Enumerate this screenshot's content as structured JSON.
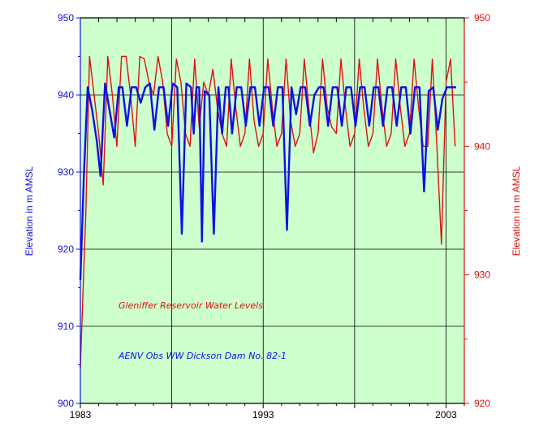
{
  "chart_data": {
    "type": "line",
    "x_ticks": [
      "1983",
      "1993",
      "2003"
    ],
    "xlim": [
      1983,
      2004
    ],
    "left_axis": {
      "label": "Elevation in m AMSL",
      "ylim": [
        900,
        950
      ],
      "ticks": [
        "900",
        "910",
        "920",
        "930",
        "940",
        "950"
      ],
      "color": "#1010e0"
    },
    "right_axis": {
      "label": "Elevation in m AMSL",
      "ylim": [
        920,
        950
      ],
      "ticks": [
        "920",
        "930",
        "940",
        "950"
      ],
      "color": "#e01010"
    },
    "grid": true,
    "background": "#ccffcc",
    "annotations": [
      {
        "text": "Gleniffer Reservoir Water Levels",
        "color": "#e01010"
      },
      {
        "text": "AENV Obs WW Dickson Dam No. 82-1",
        "color": "#1010e0"
      }
    ],
    "series": [
      {
        "axis": "right",
        "color": "#e01010",
        "x": [
          1983.0,
          1983.3,
          1983.5,
          1983.75,
          1984.0,
          1984.25,
          1984.5,
          1984.75,
          1985.0,
          1985.25,
          1985.5,
          1985.75,
          1986.0,
          1986.25,
          1986.5,
          1986.75,
          1987.0,
          1987.25,
          1987.5,
          1987.75,
          1988.0,
          1988.25,
          1988.5,
          1988.75,
          1989.0,
          1989.25,
          1989.5,
          1989.75,
          1990.0,
          1990.25,
          1990.5,
          1990.75,
          1991.0,
          1991.25,
          1991.5,
          1991.75,
          1992.0,
          1992.25,
          1992.5,
          1992.75,
          1993.0,
          1993.25,
          1993.5,
          1993.75,
          1994.0,
          1994.25,
          1994.5,
          1994.75,
          1995.0,
          1995.25,
          1995.5,
          1995.75,
          1996.0,
          1996.25,
          1996.5,
          1996.75,
          1997.0,
          1997.25,
          1997.5,
          1997.75,
          1998.0,
          1998.25,
          1998.5,
          1998.75,
          1999.0,
          1999.25,
          1999.5,
          1999.75,
          2000.0,
          2000.25,
          2000.5,
          2000.75,
          2001.0,
          2001.25,
          2001.5,
          2001.75,
          2002.0,
          2002.25,
          2002.5,
          2002.75,
          2003.0,
          2003.25,
          2003.5
        ],
        "y": [
          922.8,
          935.0,
          947.0,
          944.0,
          941.0,
          937.0,
          947.0,
          944.0,
          940.0,
          947.0,
          947.0,
          944.0,
          940.0,
          947.0,
          946.8,
          945.0,
          944.0,
          947.0,
          945.0,
          941.0,
          940.0,
          946.8,
          945.0,
          941.0,
          940.0,
          946.8,
          941.5,
          945.0,
          944.0,
          946.0,
          943.0,
          941.0,
          940.0,
          946.8,
          943.0,
          940.0,
          941.0,
          946.8,
          942.0,
          940.0,
          941.0,
          946.8,
          943.0,
          940.0,
          941.0,
          946.8,
          942.0,
          940.0,
          941.0,
          946.8,
          943.0,
          939.5,
          941.0,
          946.8,
          943.0,
          941.5,
          941.0,
          946.8,
          943.0,
          940.0,
          941.0,
          946.8,
          943.0,
          940.0,
          941.0,
          946.8,
          943.0,
          940.0,
          941.0,
          946.8,
          943.0,
          940.0,
          941.0,
          946.8,
          943.0,
          940.0,
          940.0,
          946.8,
          940.0,
          932.4,
          945.0,
          946.8,
          940.0
        ]
      },
      {
        "axis": "left",
        "color": "#1010e0",
        "x": [
          1983.0,
          1983.2,
          1983.4,
          1983.65,
          1983.9,
          1984.1,
          1984.35,
          1984.6,
          1984.85,
          1985.1,
          1985.3,
          1985.55,
          1985.8,
          1986.05,
          1986.3,
          1986.55,
          1986.8,
          1987.05,
          1987.3,
          1987.55,
          1987.8,
          1988.05,
          1988.3,
          1988.55,
          1988.8,
          1989.05,
          1989.2,
          1989.35,
          1989.5,
          1989.65,
          1989.8,
          1990.05,
          1990.3,
          1990.55,
          1990.75,
          1990.95,
          1991.1,
          1991.3,
          1991.55,
          1991.8,
          1992.05,
          1992.3,
          1992.55,
          1992.8,
          1993.05,
          1993.3,
          1993.55,
          1993.8,
          1994.05,
          1994.3,
          1994.55,
          1994.8,
          1995.05,
          1995.3,
          1995.55,
          1995.8,
          1996.05,
          1996.3,
          1996.55,
          1996.8,
          1997.05,
          1997.3,
          1997.55,
          1997.8,
          1998.05,
          1998.3,
          1998.55,
          1998.8,
          1999.05,
          1999.3,
          1999.55,
          1999.8,
          2000.05,
          2000.3,
          2000.55,
          2000.8,
          2001.05,
          2001.3,
          2001.55,
          2001.8,
          2002.05,
          2002.3,
          2002.55,
          2002.8,
          2003.05,
          2003.3,
          2003.55
        ],
        "y": [
          916.0,
          930.0,
          941.0,
          938.0,
          934.0,
          929.5,
          941.5,
          938.0,
          934.5,
          941.0,
          941.0,
          936.0,
          941.0,
          941.0,
          939.0,
          941.0,
          941.5,
          935.5,
          941.0,
          941.0,
          936.0,
          941.5,
          941.0,
          922.0,
          941.5,
          941.0,
          935.0,
          941.0,
          941.0,
          921.0,
          940.5,
          940.0,
          922.0,
          941.0,
          935.0,
          941.0,
          941.0,
          935.0,
          941.0,
          941.0,
          936.0,
          941.0,
          941.0,
          936.0,
          941.0,
          941.0,
          936.0,
          941.0,
          941.0,
          922.5,
          941.0,
          937.5,
          941.0,
          941.0,
          936.0,
          940.0,
          941.0,
          941.0,
          936.0,
          941.0,
          941.0,
          936.0,
          941.0,
          941.0,
          936.0,
          941.0,
          941.0,
          936.0,
          941.0,
          941.0,
          936.0,
          941.0,
          941.0,
          936.0,
          941.0,
          941.0,
          935.0,
          941.0,
          941.0,
          927.5,
          940.5,
          941.0,
          935.5,
          939.5,
          941.0,
          941.0,
          941.0
        ]
      }
    ]
  }
}
